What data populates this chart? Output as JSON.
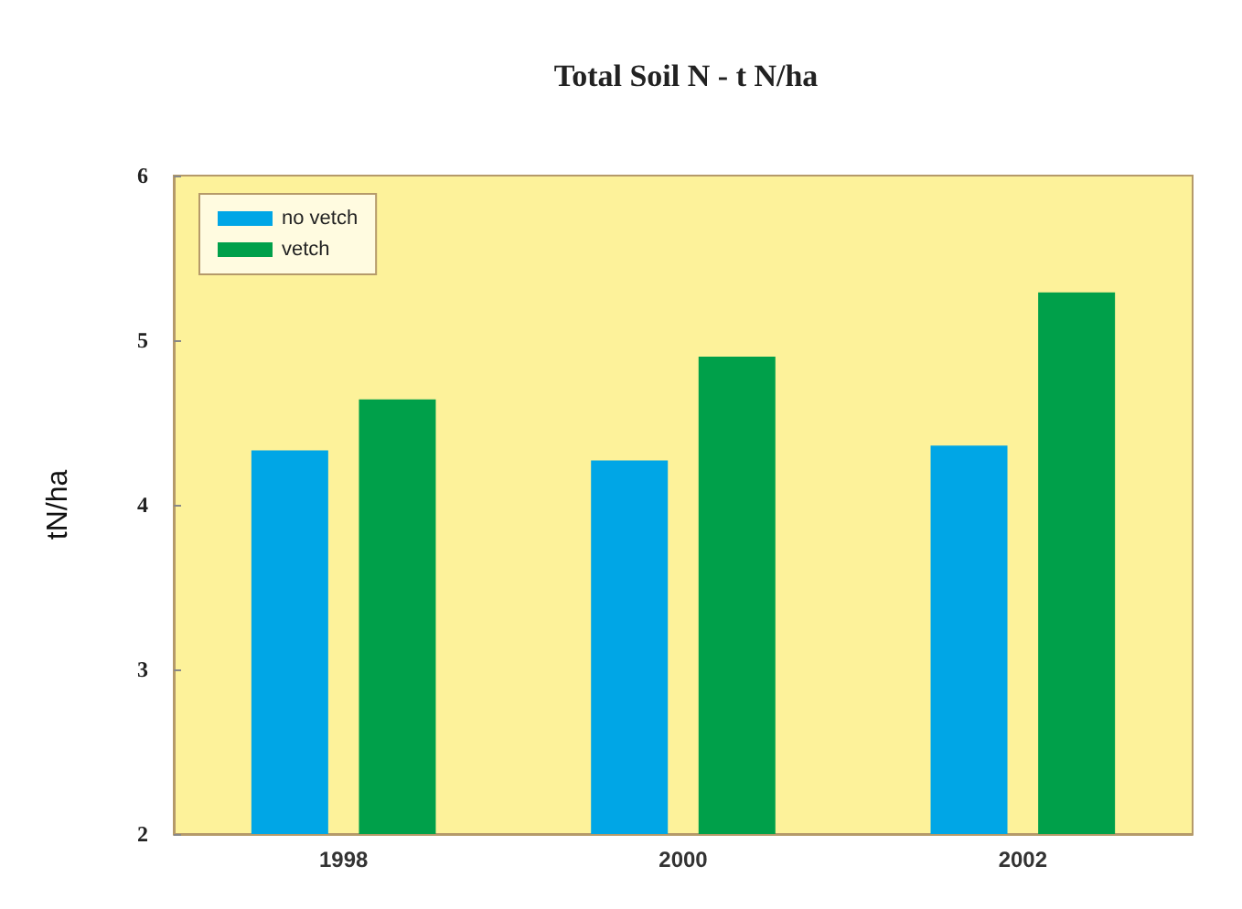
{
  "chart_data": {
    "type": "bar",
    "title": "Total Soil N - t N/ha",
    "ylabel": "tN/ha",
    "categories": [
      "1998",
      "2000",
      "2002"
    ],
    "series": [
      {
        "name": "no vetch",
        "color": "#00a6e6",
        "values": [
          4.33,
          4.27,
          4.36
        ]
      },
      {
        "name": "vetch",
        "color": "#00a04a",
        "values": [
          4.64,
          4.9,
          5.29
        ]
      }
    ],
    "ylim": [
      2,
      6
    ],
    "yticks": [
      2,
      3,
      4,
      5,
      6
    ],
    "grid": false,
    "legend": "top left"
  }
}
